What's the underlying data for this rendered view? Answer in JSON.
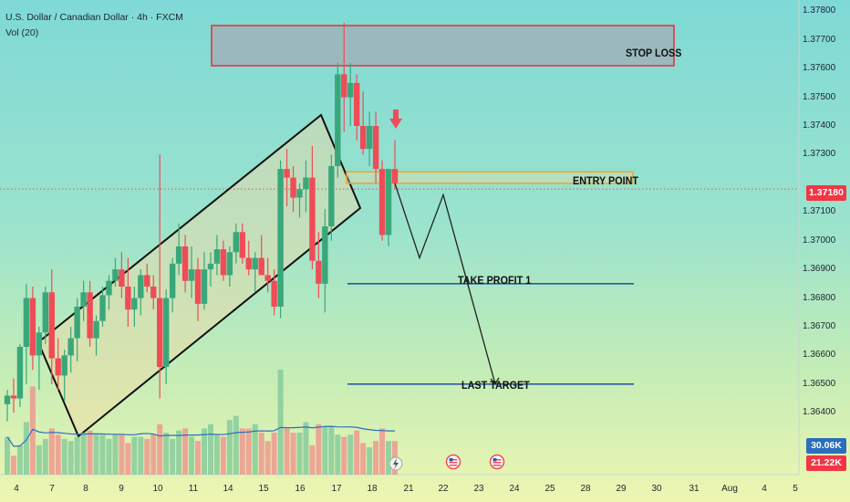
{
  "header": {
    "symbol": "U.S. Dollar / Canadian Dollar · 4h · FXCM",
    "indicator": "Vol (20)"
  },
  "annotations": {
    "stop_loss": "STOP LOSS",
    "entry_point": "ENTRY POINT",
    "take_profit_1": "TAKE PROFIT 1",
    "last_target": "LAST TARGET"
  },
  "badges": {
    "last_price": "1.37180",
    "last_price_color": "#f23645",
    "volume_1": "30.06K",
    "volume_1_color": "#2a6ebd",
    "volume_2": "21.22K",
    "volume_2_color": "#f23645"
  },
  "colors": {
    "up": "#3aa77a",
    "down": "#ef4c57",
    "stop_zone_border": "#e0303d",
    "entry_zone_border": "#f0a330",
    "target_line": "#2d5aa8",
    "projection": "#222222"
  },
  "chart_data": {
    "type": "candlestick",
    "ylim": [
      1.3635,
      1.3782
    ],
    "y_ticks": [
      "1.37800",
      "1.37700",
      "1.37600",
      "1.37500",
      "1.37400",
      "1.37300",
      "1.37100",
      "1.37000",
      "1.36900",
      "1.36800",
      "1.36700",
      "1.36600",
      "1.36500",
      "1.36400"
    ],
    "x_ticks": [
      "4",
      "7",
      "8",
      "9",
      "10",
      "11",
      "14",
      "15",
      "16",
      "17",
      "18",
      "21",
      "22",
      "23",
      "24",
      "25",
      "28",
      "29",
      "30",
      "31",
      "Aug",
      "4",
      "5"
    ],
    "candles_ohlc": [
      [
        1.3643,
        1.3648,
        1.3637,
        1.3646
      ],
      [
        1.3646,
        1.3652,
        1.364,
        1.3645
      ],
      [
        1.3645,
        1.3664,
        1.3642,
        1.3663
      ],
      [
        1.3663,
        1.3685,
        1.365,
        1.368
      ],
      [
        1.368,
        1.3684,
        1.3655,
        1.366
      ],
      [
        1.366,
        1.367,
        1.3648,
        1.3668
      ],
      [
        1.3668,
        1.3684,
        1.3664,
        1.3682
      ],
      [
        1.3682,
        1.369,
        1.365,
        1.3659
      ],
      [
        1.3659,
        1.3666,
        1.3648,
        1.3653
      ],
      [
        1.3653,
        1.3662,
        1.3644,
        1.366
      ],
      [
        1.366,
        1.367,
        1.3654,
        1.3666
      ],
      [
        1.3666,
        1.368,
        1.3658,
        1.3677
      ],
      [
        1.3677,
        1.3686,
        1.3672,
        1.3682
      ],
      [
        1.3682,
        1.3686,
        1.3663,
        1.3666
      ],
      [
        1.3666,
        1.3674,
        1.366,
        1.3672
      ],
      [
        1.3672,
        1.3684,
        1.367,
        1.3681
      ],
      [
        1.3681,
        1.3688,
        1.3676,
        1.3686
      ],
      [
        1.3686,
        1.3694,
        1.3684,
        1.369
      ],
      [
        1.369,
        1.3696,
        1.368,
        1.3684
      ],
      [
        1.3684,
        1.3694,
        1.367,
        1.3676
      ],
      [
        1.3676,
        1.3684,
        1.367,
        1.368
      ],
      [
        1.368,
        1.369,
        1.3674,
        1.3688
      ],
      [
        1.3688,
        1.3692,
        1.3682,
        1.3684
      ],
      [
        1.3684,
        1.3688,
        1.3676,
        1.368
      ],
      [
        1.368,
        1.373,
        1.3645,
        1.3656
      ],
      [
        1.3656,
        1.3683,
        1.365,
        1.368
      ],
      [
        1.368,
        1.3694,
        1.3675,
        1.3692
      ],
      [
        1.3692,
        1.3706,
        1.3688,
        1.3698
      ],
      [
        1.3698,
        1.3702,
        1.3682,
        1.3686
      ],
      [
        1.3686,
        1.3698,
        1.368,
        1.369
      ],
      [
        1.369,
        1.3694,
        1.3672,
        1.3678
      ],
      [
        1.3678,
        1.3696,
        1.3676,
        1.369
      ],
      [
        1.369,
        1.3696,
        1.3684,
        1.3692
      ],
      [
        1.3692,
        1.3702,
        1.3688,
        1.3697
      ],
      [
        1.3697,
        1.37,
        1.3686,
        1.3688
      ],
      [
        1.3688,
        1.3698,
        1.3684,
        1.3696
      ],
      [
        1.3696,
        1.3706,
        1.3692,
        1.3703
      ],
      [
        1.3703,
        1.3706,
        1.3692,
        1.3694
      ],
      [
        1.3694,
        1.37,
        1.3688,
        1.369
      ],
      [
        1.369,
        1.3696,
        1.3682,
        1.3694
      ],
      [
        1.3694,
        1.3702,
        1.369,
        1.3688
      ],
      [
        1.3688,
        1.3694,
        1.3682,
        1.3686
      ],
      [
        1.3686,
        1.369,
        1.3674,
        1.3677
      ],
      [
        1.3677,
        1.3728,
        1.3673,
        1.3725
      ],
      [
        1.3725,
        1.3732,
        1.3712,
        1.3722
      ],
      [
        1.3722,
        1.3726,
        1.371,
        1.3715
      ],
      [
        1.3715,
        1.372,
        1.3708,
        1.3718
      ],
      [
        1.3718,
        1.3728,
        1.371,
        1.3722
      ],
      [
        1.3722,
        1.3733,
        1.369,
        1.3693
      ],
      [
        1.3693,
        1.3703,
        1.368,
        1.3685
      ],
      [
        1.3685,
        1.3711,
        1.3675,
        1.3705
      ],
      [
        1.3705,
        1.373,
        1.37,
        1.3726
      ],
      [
        1.3726,
        1.3762,
        1.3722,
        1.3758
      ],
      [
        1.3758,
        1.3776,
        1.3738,
        1.375
      ],
      [
        1.375,
        1.3762,
        1.374,
        1.3755
      ],
      [
        1.3755,
        1.3758,
        1.3735,
        1.374
      ],
      [
        1.374,
        1.3752,
        1.373,
        1.3732
      ],
      [
        1.3732,
        1.3745,
        1.3726,
        1.374
      ],
      [
        1.374,
        1.3745,
        1.372,
        1.3725
      ],
      [
        1.3725,
        1.3728,
        1.37,
        1.3702
      ],
      [
        1.3702,
        1.3722,
        1.3698,
        1.3725
      ],
      [
        1.3725,
        1.3735,
        1.3718,
        1.372
      ]
    ],
    "volumes_k": [
      18,
      9,
      14,
      25,
      42,
      14,
      17,
      22,
      19,
      17,
      16,
      18,
      20,
      21,
      19,
      19,
      17,
      19,
      19,
      15,
      18,
      18,
      17,
      19,
      24,
      20,
      17,
      21,
      22,
      18,
      16,
      22,
      24,
      19,
      18,
      26,
      28,
      22,
      22,
      24,
      20,
      16,
      20,
      50,
      22,
      20,
      20,
      25,
      14,
      24,
      23,
      23,
      19,
      18,
      19,
      21,
      15,
      13,
      16,
      22,
      16,
      16
    ],
    "stop_loss_zone": [
      1.3761,
      1.3775
    ],
    "entry_zone": [
      1.372,
      1.3724
    ],
    "take_profit_1": 1.3685,
    "last_target": 1.365,
    "current_price": 1.3718,
    "projection_path": [
      [
        0,
        1.372
      ],
      [
        1,
        1.3694
      ],
      [
        2,
        1.3716
      ],
      [
        3,
        1.365
      ]
    ]
  }
}
